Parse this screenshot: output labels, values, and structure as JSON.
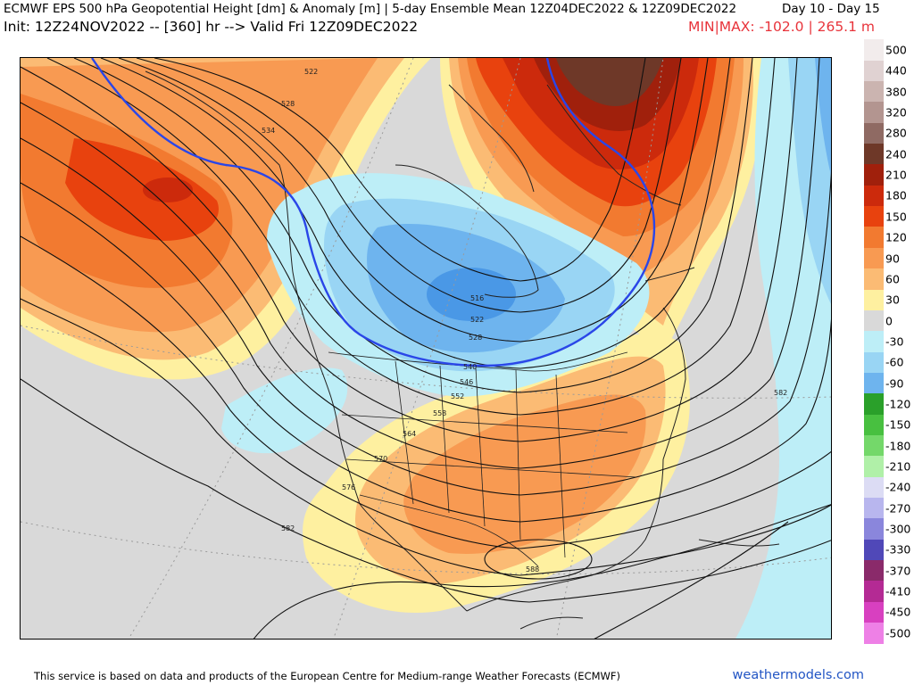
{
  "header": {
    "line1": "ECMWF EPS 500 hPa Geopotential Height [dm] & Anomaly [m] | 5-day Ensemble Mean 12Z04DEC2022 & 12Z09DEC2022",
    "days": "Day 10 - Day 15",
    "line2": "Init: 12Z24NOV2022 -- [360] hr --> Valid Fri 12Z09DEC2022",
    "minmax": "MIN|MAX: -102.0 | 265.1 m"
  },
  "map": {
    "contour_labels": [
      "522",
      "528",
      "534",
      "516",
      "522",
      "528",
      "540",
      "546",
      "552",
      "558",
      "564",
      "570",
      "576",
      "582",
      "582",
      "588"
    ]
  },
  "colorbar": {
    "ticks": [
      "500",
      "440",
      "380",
      "320",
      "280",
      "240",
      "210",
      "180",
      "150",
      "120",
      "90",
      "60",
      "30",
      "0",
      "-30",
      "-60",
      "-90",
      "-120",
      "-150",
      "-180",
      "-210",
      "-240",
      "-270",
      "-300",
      "-330",
      "-370",
      "-410",
      "-450",
      "-500"
    ],
    "colors": {
      "500": "#f2ecec",
      "440": "#e0d2d2",
      "380": "#cbb4b0",
      "320": "#b39590",
      "280": "#8f6a63",
      "240": "#6e3828",
      "210": "#a0200c",
      "180": "#cc2a0c",
      "150": "#e8420e",
      "120": "#f27a30",
      "90": "#f89a52",
      "60": "#fbbb74",
      "30": "#fef0a0",
      "0": "#d9d9d9",
      "-30": "#bdeef7",
      "-60": "#99d5f4",
      "-90": "#6eb4ee",
      "-120": "#2aa02a",
      "-150": "#48c040",
      "-180": "#74d86a",
      "-210": "#b0f0a8",
      "-240": "#dcdcf4",
      "-270": "#b8b6ee",
      "-300": "#8a86dc",
      "-330": "#5048b8",
      "-370": "#8a2a6a",
      "-410": "#b42a94",
      "-450": "#d840c0",
      "-500": "#ee80e6"
    }
  },
  "footer": {
    "credit": "This service is based on data and products of the European Centre for Medium-range Weather Forecasts (ECMWF)",
    "site": "weathermodels.com"
  }
}
